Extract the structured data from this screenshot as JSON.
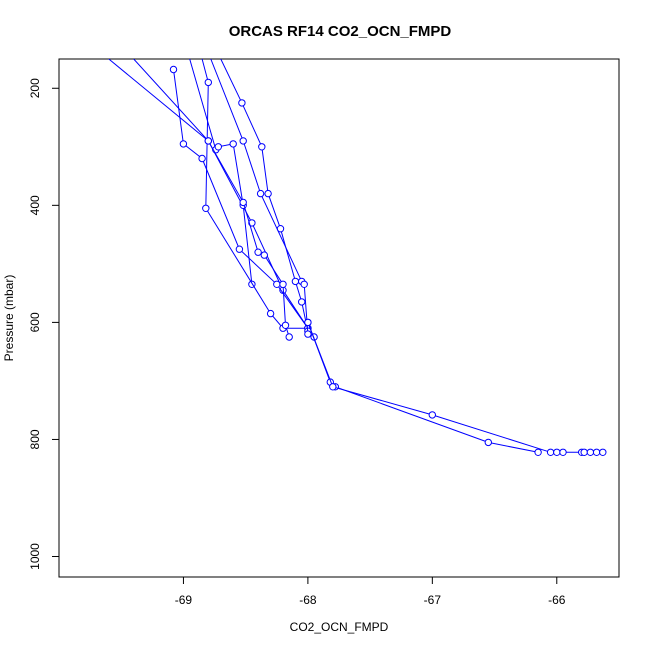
{
  "chart_data": {
    "type": "line",
    "title": "ORCAS RF14 CO2_OCN_FMPD",
    "xlabel": "CO2_OCN_FMPD",
    "ylabel": "Pressure (mbar)",
    "xlim": [
      -70.0,
      -65.5
    ],
    "ylim": [
      1035,
      150
    ],
    "y_reversed": true,
    "grid": false,
    "xticks": [
      -69,
      -68,
      -67,
      -66
    ],
    "yticks": [
      200,
      400,
      600,
      800,
      1000
    ],
    "point_style": "open-circle",
    "color": "#0000ff",
    "series": [
      {
        "x": [
          -69.4,
          -68.8,
          -68.45,
          -68.2,
          -68.0
        ],
        "y": [
          150,
          290,
          430,
          545,
          610
        ]
      },
      {
        "x": [
          -69.08,
          -69.0,
          -68.85,
          -68.55,
          -68.25,
          -68.0
        ],
        "y": [
          168,
          295,
          320,
          475,
          535,
          610
        ]
      },
      {
        "x": [
          -68.95,
          -68.74,
          -68.72,
          -68.6,
          -68.52,
          -68.45
        ],
        "y": [
          150,
          305,
          300,
          295,
          400,
          535
        ]
      },
      {
        "x": [
          -68.85,
          -68.8,
          -68.82,
          -68.3,
          -68.2,
          -68.0
        ],
        "y": [
          150,
          190,
          405,
          585,
          610,
          610
        ]
      },
      {
        "x": [
          -68.7,
          -68.53,
          -68.37,
          -68.32,
          -68.22,
          -68.1,
          -68.05,
          -68.0
        ],
        "y": [
          150,
          225,
          300,
          380,
          440,
          530,
          565,
          615
        ]
      },
      {
        "x": [
          -69.6,
          -68.8,
          -68.52,
          -68.4,
          -68.35,
          -68.2,
          -68.18,
          -68.15
        ],
        "y": [
          150,
          290,
          395,
          480,
          485,
          535,
          605,
          625
        ]
      },
      {
        "x": [
          -68.78,
          -68.52,
          -68.38,
          -68.05,
          -68.03,
          -68.0,
          -67.95
        ],
        "y": [
          150,
          290,
          380,
          530,
          535,
          620,
          625
        ]
      },
      {
        "x": [
          -68.0,
          -67.82,
          -67.78,
          -66.55,
          -66.15
        ],
        "y": [
          600,
          702,
          710,
          805,
          822
        ]
      },
      {
        "x": [
          -68.0,
          -67.8,
          -67.0,
          -66.05,
          -66.0,
          -65.95,
          -65.8,
          -65.78,
          -65.73,
          -65.68,
          -65.63
        ],
        "y": [
          600,
          710,
          758,
          822,
          822,
          822,
          822,
          822,
          822,
          822,
          822
        ]
      }
    ]
  }
}
